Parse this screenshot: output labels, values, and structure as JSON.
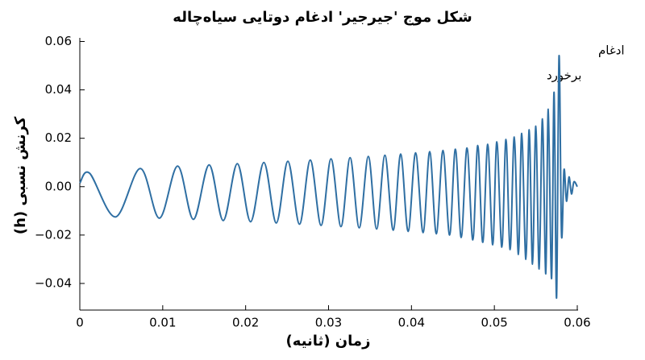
{
  "chart_data": {
    "type": "line",
    "title": "شکل موج 'جیرجیر' ادغام دوتایی سیاه‌چاله",
    "x_label": "زمان (ثانیه)",
    "y_label": "کرنش نسبی (h)",
    "annotations": [
      "ادغام",
      "برخورد"
    ],
    "color": "#2f6fa3",
    "xlim": [
      0,
      0.06
    ],
    "ylim": [
      -0.051,
      0.0615
    ],
    "xticks": [
      0,
      0.01,
      0.02,
      0.03,
      0.04,
      0.05,
      0.06
    ],
    "yticks": [
      {
        "value": -0.04,
        "label": "−0.04"
      },
      {
        "value": -0.02,
        "label": "−0.02"
      },
      {
        "value": 0,
        "label": "0.00"
      },
      0.02,
      0.04,
      0.06
    ],
    "x": [
      0.0,
      0.0012,
      0.0043,
      0.0073,
      0.0096,
      0.0118,
      0.0137,
      0.0156,
      0.0173,
      0.019,
      0.0206,
      0.0222,
      0.0237,
      0.0251,
      0.0265,
      0.0278,
      0.0291,
      0.0303,
      0.0315,
      0.0326,
      0.0337,
      0.0348,
      0.0358,
      0.0368,
      0.0378,
      0.0387,
      0.0396,
      0.0405,
      0.0414,
      0.0422,
      0.043,
      0.0438,
      0.0446,
      0.0453,
      0.046,
      0.0467,
      0.0474,
      0.048,
      0.0486,
      0.0492,
      0.0498,
      0.0503,
      0.0509,
      0.0514,
      0.0519,
      0.0524,
      0.0529,
      0.0533,
      0.0538,
      0.0542,
      0.0546,
      0.055,
      0.0554,
      0.0558,
      0.0562,
      0.0565,
      0.0569,
      0.0572,
      0.0575,
      0.0578,
      0.0581,
      0.0584,
      0.0587,
      0.059,
      0.0593,
      0.0596,
      0.06
    ],
    "values": [
      0.0015,
      0.0055,
      -0.0125,
      0.0075,
      -0.013,
      0.0085,
      -0.0135,
      0.009,
      -0.014,
      0.0095,
      -0.0145,
      0.01,
      -0.015,
      0.0105,
      -0.0155,
      0.011,
      -0.016,
      0.0115,
      -0.0165,
      0.012,
      -0.017,
      0.0125,
      -0.0175,
      0.013,
      -0.018,
      0.0135,
      -0.0185,
      0.014,
      -0.019,
      0.0145,
      -0.0195,
      0.015,
      -0.02,
      0.0155,
      -0.021,
      0.016,
      -0.022,
      0.017,
      -0.023,
      0.0175,
      -0.024,
      0.0185,
      -0.025,
      0.0195,
      -0.026,
      0.0205,
      -0.028,
      0.022,
      -0.03,
      0.0235,
      -0.032,
      0.025,
      -0.034,
      0.028,
      -0.036,
      0.032,
      -0.038,
      0.039,
      -0.046,
      0.054,
      -0.02,
      0.007,
      -0.006,
      0.004,
      -0.003,
      0.002,
      0.0
    ]
  }
}
